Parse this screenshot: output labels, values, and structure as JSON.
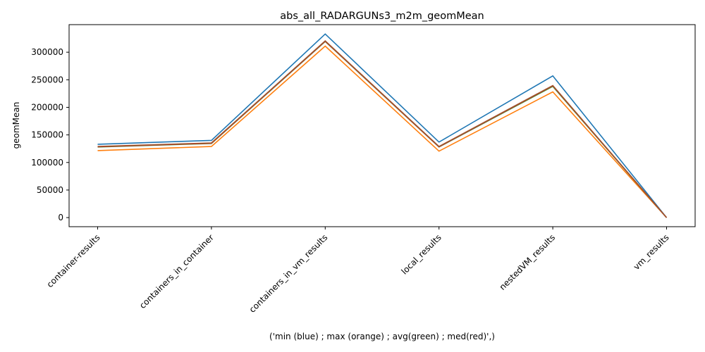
{
  "chart_data": {
    "type": "line",
    "title": "abs_all_RADARGUNs3_m2m_geomMean",
    "xlabel": "('min (blue) ; max (orange) ; avg(green) ; med(red)',)",
    "ylabel": "geomMean",
    "categories": [
      "container-results",
      "containers_in_container",
      "containers_in_vm_results",
      "local_results",
      "nestedVM_results",
      "vm_results"
    ],
    "yticks": [
      0,
      50000,
      100000,
      150000,
      200000,
      250000,
      300000
    ],
    "ytick_labels": [
      "0",
      "50000",
      "100000",
      "150000",
      "200000",
      "250000",
      "300000"
    ],
    "ylim": [
      -16500,
      350000
    ],
    "grid": false,
    "series": [
      {
        "color": "#1f77b4",
        "values": [
          133000,
          140000,
          333000,
          137000,
          257000,
          0
        ]
      },
      {
        "color": "#ff7f0e",
        "values": [
          121500,
          129000,
          311000,
          120500,
          228000,
          0
        ]
      },
      {
        "color": "#2ca02c",
        "values": [
          128000,
          134500,
          319500,
          128000,
          238000,
          0
        ]
      },
      {
        "color": "#d62728",
        "values": [
          128500,
          135000,
          320000,
          128500,
          239000,
          0
        ]
      },
      {
        "color": "#a0522d",
        "values": [
          129000,
          135500,
          320500,
          129000,
          239500,
          0
        ]
      }
    ]
  }
}
